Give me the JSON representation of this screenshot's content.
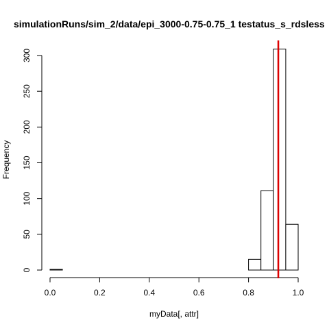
{
  "chart_data": {
    "type": "bar",
    "histogram": true,
    "title": "simulationRuns/sim_2/data/epi_3000-0.75-0.75_1 testatus_s_rdsless",
    "xlabel": "myData[, attr]",
    "ylabel": "Frequency",
    "xlim": [
      0.0,
      1.0
    ],
    "ylim": [
      0,
      310
    ],
    "x_ticks": [
      0.0,
      0.2,
      0.4,
      0.6,
      0.8,
      1.0
    ],
    "x_tick_labels": [
      "0.0",
      "0.2",
      "0.4",
      "0.6",
      "0.8",
      "1.0"
    ],
    "y_ticks": [
      0,
      50,
      100,
      150,
      200,
      250,
      300
    ],
    "y_tick_labels": [
      "0",
      "50",
      "100",
      "150",
      "200",
      "250",
      "300"
    ],
    "bins": [
      {
        "start": 0.0,
        "end": 0.05,
        "count": 1
      },
      {
        "start": 0.05,
        "end": 0.1,
        "count": 0
      },
      {
        "start": 0.1,
        "end": 0.15,
        "count": 0
      },
      {
        "start": 0.15,
        "end": 0.2,
        "count": 0
      },
      {
        "start": 0.2,
        "end": 0.25,
        "count": 0
      },
      {
        "start": 0.25,
        "end": 0.3,
        "count": 0
      },
      {
        "start": 0.3,
        "end": 0.35,
        "count": 0
      },
      {
        "start": 0.35,
        "end": 0.4,
        "count": 0
      },
      {
        "start": 0.4,
        "end": 0.45,
        "count": 0
      },
      {
        "start": 0.45,
        "end": 0.5,
        "count": 0
      },
      {
        "start": 0.5,
        "end": 0.55,
        "count": 0
      },
      {
        "start": 0.55,
        "end": 0.6,
        "count": 0
      },
      {
        "start": 0.6,
        "end": 0.65,
        "count": 0
      },
      {
        "start": 0.65,
        "end": 0.7,
        "count": 0
      },
      {
        "start": 0.7,
        "end": 0.75,
        "count": 0
      },
      {
        "start": 0.75,
        "end": 0.8,
        "count": 0
      },
      {
        "start": 0.8,
        "end": 0.85,
        "count": 15
      },
      {
        "start": 0.85,
        "end": 0.9,
        "count": 111
      },
      {
        "start": 0.9,
        "end": 0.95,
        "count": 309
      },
      {
        "start": 0.95,
        "end": 1.0,
        "count": 64
      }
    ],
    "reference_line": {
      "x": 0.92,
      "color": "#dd0000"
    },
    "bar_fill": "#ffffff",
    "bar_stroke": "#000000",
    "grid": false,
    "legend": "none"
  }
}
